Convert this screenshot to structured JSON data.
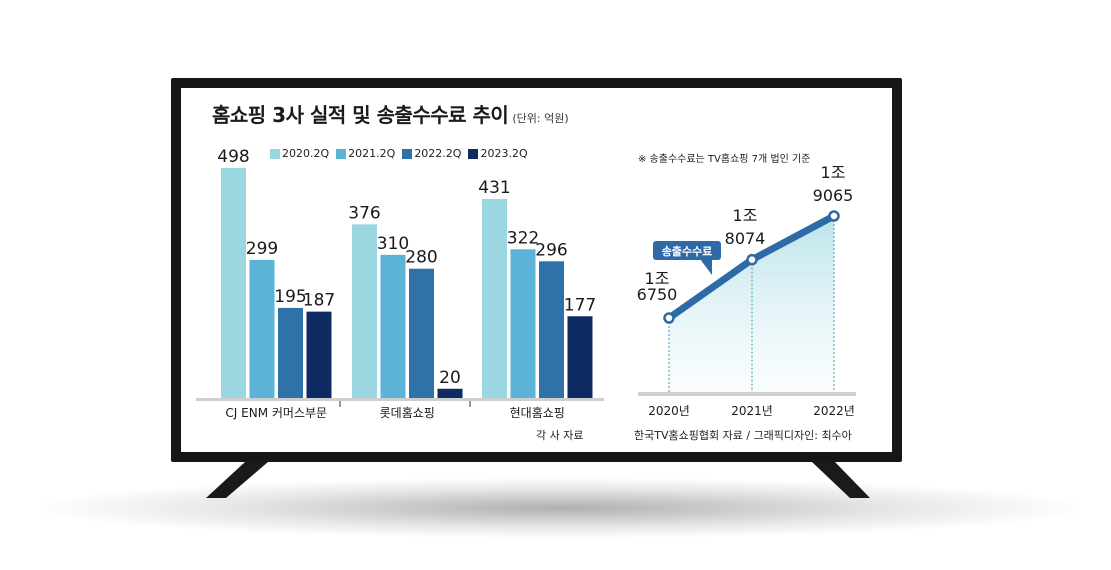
{
  "title": "홈쇼핑 3사 실적 및 송출수수료 추이",
  "unit": "(단위: 억원)",
  "note": "※ 송출수수료는 TV홈쇼핑 7개 법인 기준",
  "source_left": "각 사 자료",
  "source_right": "한국TV홈쇼핑협회 자료 / 그래픽디자인: 최수아",
  "colors": [
    "#9ad7e0",
    "#5bb3d8",
    "#2f72aa",
    "#0d2a62"
  ],
  "chart_data": [
    {
      "type": "bar",
      "categories": [
        "CJ ENM 커머스부문",
        "롯데홈쇼핑",
        "현대홈쇼핑"
      ],
      "series": [
        {
          "name": "2020.2Q",
          "values": [
            498,
            376,
            431
          ]
        },
        {
          "name": "2021.2Q",
          "values": [
            299,
            310,
            322
          ]
        },
        {
          "name": "2022.2Q",
          "values": [
            195,
            280,
            296
          ]
        },
        {
          "name": "2023.2Q",
          "values": [
            187,
            20,
            177
          ]
        }
      ],
      "ylim": [
        0,
        498
      ]
    },
    {
      "type": "line",
      "x": [
        "2020년",
        "2021년",
        "2022년"
      ],
      "y": [
        16750,
        18074,
        19065
      ],
      "point_labels": [
        [
          "1조",
          "6750"
        ],
        [
          "1조",
          "8074"
        ],
        [
          "1조",
          "9065"
        ]
      ],
      "series_label": "송출수수료",
      "ylim": [
        16750,
        19065
      ]
    }
  ]
}
